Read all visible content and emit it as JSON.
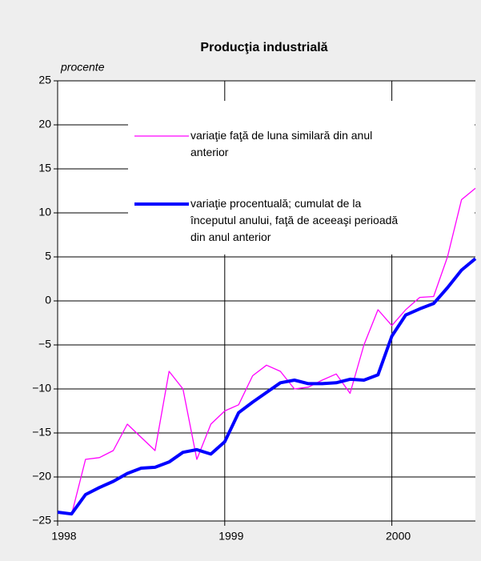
{
  "chart_data": {
    "type": "line",
    "title": "Producţia industrială",
    "y_label": "procente",
    "x": [
      1998.0,
      1998.083,
      1998.167,
      1998.25,
      1998.333,
      1998.417,
      1998.5,
      1998.583,
      1998.667,
      1998.75,
      1998.833,
      1998.917,
      1999.0,
      1999.083,
      1999.167,
      1999.25,
      1999.333,
      1999.417,
      1999.5,
      1999.583,
      1999.667,
      1999.75,
      1999.833,
      1999.917,
      2000.0,
      2000.083,
      2000.167,
      2000.25,
      2000.333,
      2000.417,
      2000.5
    ],
    "series": [
      {
        "name": "variaţie faţă de luna similară din anul anterior",
        "color": "#ff00ff",
        "width": 1.3,
        "values": [
          -24,
          -24.3,
          -18,
          -17.8,
          -17,
          -14,
          -15.5,
          -17,
          -8,
          -10,
          -18,
          -14,
          -12.5,
          -11.8,
          -8.5,
          -7.3,
          -8,
          -10,
          -9.8,
          -9,
          -8.3,
          -10.5,
          -5,
          -1,
          -2.8,
          -1,
          0.4,
          0.5,
          5,
          11.5,
          12.8
        ]
      },
      {
        "name": "variaţie procentuală; cumulat de la începutul anului, faţă de aceeaşi perioadă din anul anterior",
        "color": "#0000ff",
        "width": 4,
        "values": [
          -24,
          -24.2,
          -22,
          -21.2,
          -20.5,
          -19.6,
          -19,
          -18.9,
          -18.3,
          -17.2,
          -16.9,
          -17.4,
          -16,
          -12.7,
          -11.5,
          -10.4,
          -9.3,
          -9,
          -9.4,
          -9.4,
          -9.3,
          -8.9,
          -9.0,
          -8.4,
          -4,
          -1.6,
          -0.9,
          -0.3,
          1.5,
          3.5,
          4.8
        ]
      }
    ],
    "xlim": [
      1998,
      2000.5
    ],
    "xticks": [
      1998,
      1999,
      2000
    ],
    "ylim": [
      -25,
      25
    ],
    "yticks": [
      {
        "value": -25,
        "label": "−25"
      },
      {
        "value": -20,
        "label": "−20"
      },
      {
        "value": -15,
        "label": "−15"
      },
      {
        "value": -10,
        "label": "−10"
      },
      {
        "value": -5,
        "label": "−5"
      },
      0,
      5,
      10,
      15,
      20,
      25
    ],
    "grid": true
  }
}
